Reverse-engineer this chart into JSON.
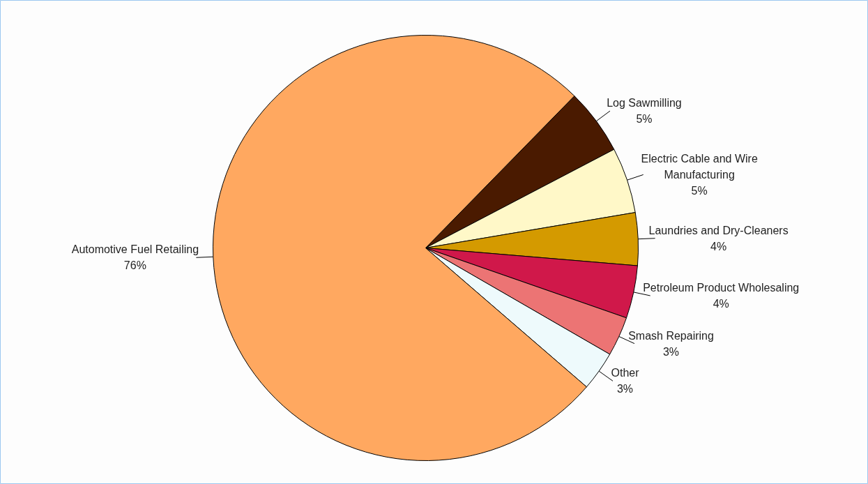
{
  "chart_data": {
    "type": "pie",
    "categories": [
      "Log Sawmilling",
      "Electric Cable and Wire Manufacturing",
      "Laundries and Dry-Cleaners",
      "Petroleum Product Wholesaling",
      "Smash Repairing",
      "Other",
      "Automotive Fuel Retailing"
    ],
    "values": [
      5,
      5,
      4,
      4,
      3,
      3,
      76
    ],
    "value_labels": [
      "5%",
      "5%",
      "4%",
      "4%",
      "3%",
      "3%",
      "76%"
    ],
    "colors": [
      "#4a1a00",
      "#fff8c8",
      "#d49a00",
      "#d0184a",
      "#ec7474",
      "#eefafc",
      "#ffa860"
    ]
  }
}
